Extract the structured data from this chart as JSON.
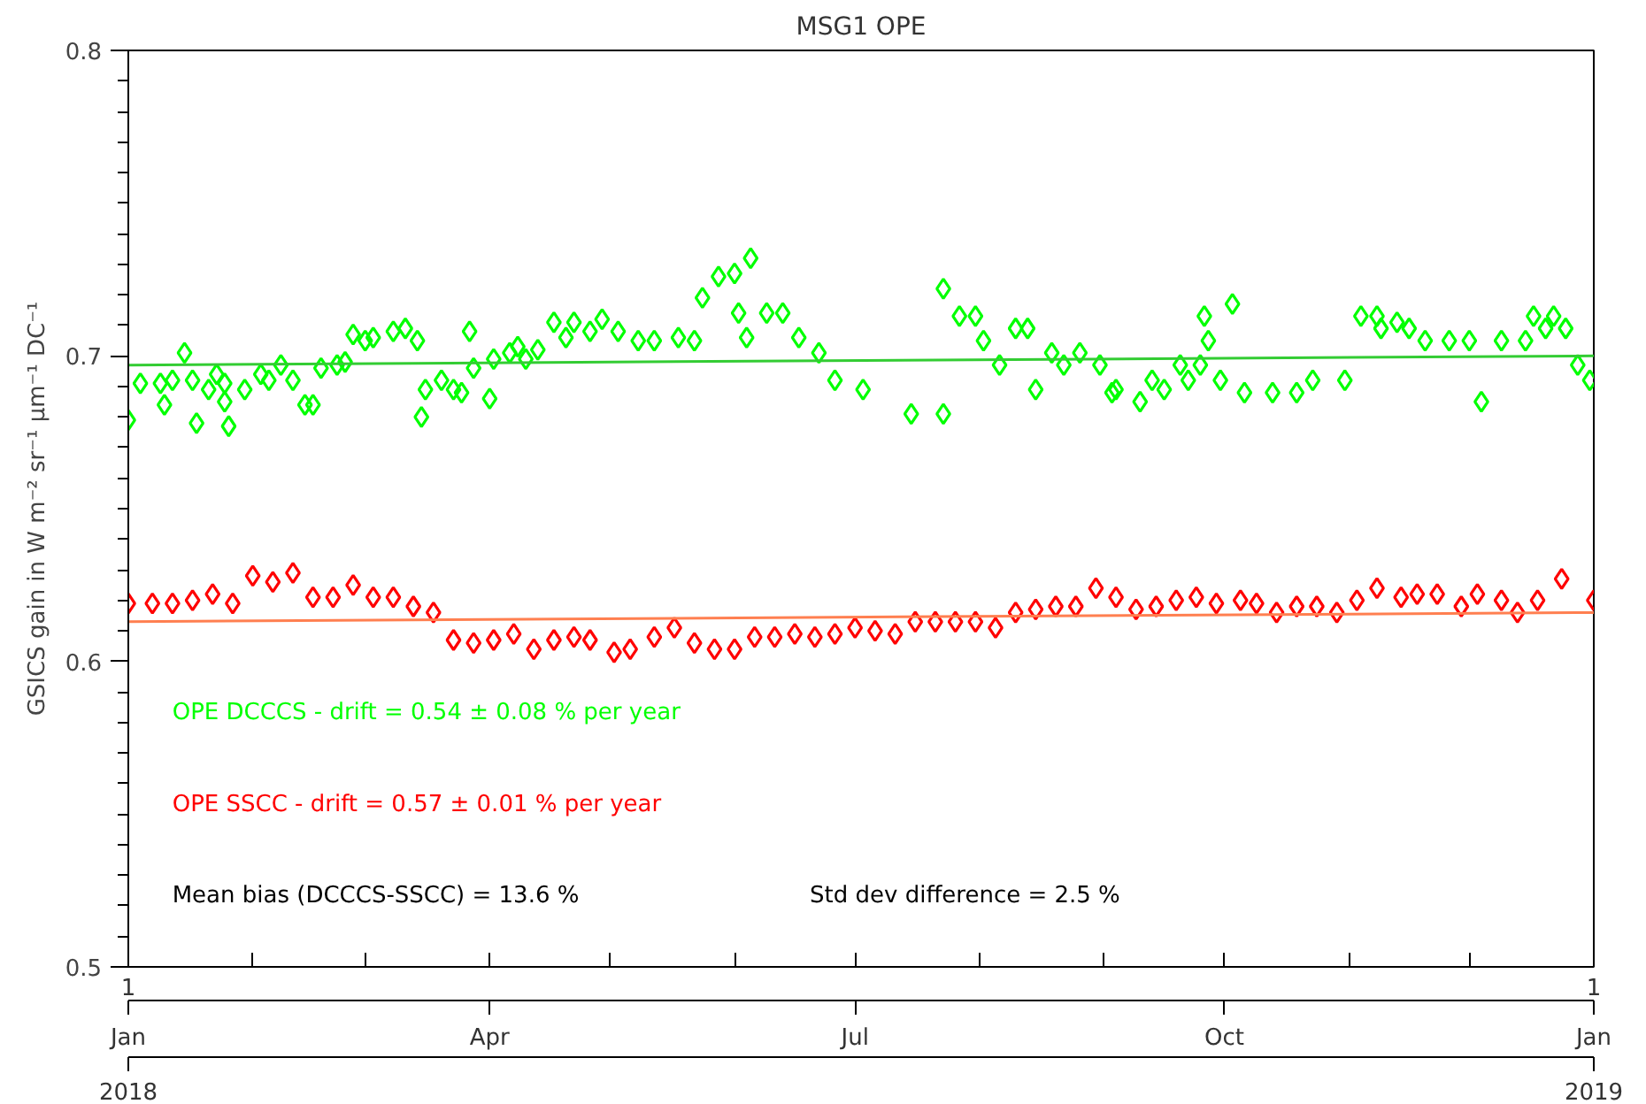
{
  "chart_data": {
    "type": "scatter",
    "title": "MSG1 OPE",
    "ylabel": "GSICS gain in W m⁻² sr⁻¹ μm⁻¹ DC⁻¹",
    "xlim": [
      "2018-01-01",
      "2019-01-01"
    ],
    "ylim": [
      0.5,
      0.8
    ],
    "yticks": [
      0.5,
      0.6,
      0.7,
      0.8
    ],
    "xticks": [
      {
        "value": "2018-01-01",
        "label": "Jan"
      },
      {
        "value": "2018-02-01",
        "label": null
      },
      {
        "value": "2018-03-01",
        "label": null
      },
      {
        "value": "2018-04-01",
        "label": "Apr"
      },
      {
        "value": "2018-05-01",
        "label": null
      },
      {
        "value": "2018-06-01",
        "label": null
      },
      {
        "value": "2018-07-01",
        "label": "Jul"
      },
      {
        "value": "2018-08-01",
        "label": null
      },
      {
        "value": "2018-09-01",
        "label": null
      },
      {
        "value": "2018-10-01",
        "label": "Oct"
      },
      {
        "value": "2018-11-01",
        "label": null
      },
      {
        "value": "2018-12-01",
        "label": null
      },
      {
        "value": "2019-01-01",
        "label": "Jan"
      }
    ],
    "grid": false,
    "annotations": [
      "OPE DCCCS  - drift =    0.54 ±    0.08 % per year",
      "OPE SSCC   - drift =    0.57 ±    0.01 % per year",
      "Mean bias (DCCCS-SSCC) =     13.6 %",
      "Std dev difference = 2.5 %",
      "1",
      "1",
      "2018",
      "2019"
    ],
    "series": [
      {
        "color": "#00ff00",
        "marker": "diamond",
        "x": [
          "2018-01-01",
          "2018-01-04",
          "2018-01-09",
          "2018-01-10",
          "2018-01-12",
          "2018-01-15",
          "2018-01-17",
          "2018-01-18",
          "2018-01-21",
          "2018-01-23",
          "2018-01-25",
          "2018-01-26",
          "2018-01-25",
          "2018-01-30",
          "2018-02-03",
          "2018-02-05",
          "2018-02-08",
          "2018-02-11",
          "2018-02-14",
          "2018-02-16",
          "2018-02-18",
          "2018-02-22",
          "2018-02-24",
          "2018-02-26",
          "2018-03-01",
          "2018-03-03",
          "2018-03-08",
          "2018-03-11",
          "2018-03-14",
          "2018-03-15",
          "2018-03-16",
          "2018-03-20",
          "2018-03-23",
          "2018-03-27",
          "2018-03-25",
          "2018-03-28",
          "2018-04-01",
          "2018-04-02",
          "2018-04-06",
          "2018-04-08",
          "2018-04-10",
          "2018-04-13",
          "2018-04-17",
          "2018-04-20",
          "2018-04-22",
          "2018-04-26",
          "2018-04-29",
          "2018-05-03",
          "2018-05-08",
          "2018-05-12",
          "2018-05-18",
          "2018-05-22",
          "2018-05-24",
          "2018-05-28",
          "2018-06-01",
          "2018-06-02",
          "2018-06-04",
          "2018-06-05",
          "2018-06-09",
          "2018-06-13",
          "2018-06-17",
          "2018-06-22",
          "2018-06-26",
          "2018-07-03",
          "2018-07-15",
          "2018-07-23",
          "2018-07-23",
          "2018-07-27",
          "2018-07-31",
          "2018-08-02",
          "2018-08-06",
          "2018-08-10",
          "2018-08-13",
          "2018-08-15",
          "2018-08-19",
          "2018-08-22",
          "2018-08-26",
          "2018-08-31",
          "2018-09-03",
          "2018-09-04",
          "2018-09-10",
          "2018-09-13",
          "2018-09-16",
          "2018-09-20",
          "2018-09-22",
          "2018-09-25",
          "2018-09-26",
          "2018-09-27",
          "2018-09-30",
          "2018-10-03",
          "2018-10-06",
          "2018-10-13",
          "2018-10-19",
          "2018-10-23",
          "2018-10-31",
          "2018-11-04",
          "2018-11-08",
          "2018-11-09",
          "2018-11-13",
          "2018-11-16",
          "2018-11-20",
          "2018-11-26",
          "2018-12-01",
          "2018-12-04",
          "2018-12-09",
          "2018-12-15",
          "2018-12-17",
          "2018-12-20",
          "2018-12-22",
          "2018-12-25",
          "2018-12-28",
          "2018-12-31"
        ],
        "values": [
          0.679,
          0.691,
          0.691,
          0.684,
          0.692,
          0.701,
          0.692,
          0.678,
          0.689,
          0.694,
          0.691,
          0.677,
          0.685,
          0.689,
          0.694,
          0.692,
          0.697,
          0.692,
          0.684,
          0.684,
          0.696,
          0.697,
          0.698,
          0.707,
          0.705,
          0.706,
          0.708,
          0.709,
          0.705,
          0.68,
          0.689,
          0.692,
          0.689,
          0.708,
          0.688,
          0.696,
          0.686,
          0.699,
          0.701,
          0.703,
          0.699,
          0.702,
          0.711,
          0.706,
          0.711,
          0.708,
          0.712,
          0.708,
          0.705,
          0.705,
          0.706,
          0.705,
          0.719,
          0.726,
          0.727,
          0.714,
          0.706,
          0.732,
          0.714,
          0.714,
          0.706,
          0.701,
          0.692,
          0.689,
          0.681,
          0.681,
          0.722,
          0.713,
          0.713,
          0.705,
          0.697,
          0.709,
          0.709,
          0.689,
          0.701,
          0.697,
          0.701,
          0.697,
          0.688,
          0.689,
          0.685,
          0.692,
          0.689,
          0.697,
          0.692,
          0.697,
          0.713,
          0.705,
          0.692,
          0.717,
          0.688,
          0.688,
          0.688,
          0.692,
          0.692,
          0.713,
          0.713,
          0.709,
          0.711,
          0.709,
          0.705,
          0.705,
          0.705,
          0.685,
          0.705,
          0.705,
          0.713,
          0.709,
          0.713,
          0.709,
          0.697,
          0.692
        ]
      },
      {
        "color": "#ff0000",
        "marker": "diamond",
        "x": [
          "2018-01-01",
          "2018-01-07",
          "2018-01-12",
          "2018-01-17",
          "2018-01-22",
          "2018-01-27",
          "2018-02-01",
          "2018-02-06",
          "2018-02-11",
          "2018-02-16",
          "2018-02-21",
          "2018-02-26",
          "2018-03-03",
          "2018-03-08",
          "2018-03-13",
          "2018-03-18",
          "2018-03-23",
          "2018-03-28",
          "2018-04-02",
          "2018-04-07",
          "2018-04-12",
          "2018-04-17",
          "2018-04-22",
          "2018-04-26",
          "2018-05-02",
          "2018-05-06",
          "2018-05-12",
          "2018-05-17",
          "2018-05-22",
          "2018-05-27",
          "2018-06-01",
          "2018-06-06",
          "2018-06-11",
          "2018-06-16",
          "2018-06-21",
          "2018-06-26",
          "2018-07-01",
          "2018-07-06",
          "2018-07-11",
          "2018-07-16",
          "2018-07-21",
          "2018-07-26",
          "2018-07-31",
          "2018-08-05",
          "2018-08-10",
          "2018-08-15",
          "2018-08-20",
          "2018-08-25",
          "2018-08-30",
          "2018-09-04",
          "2018-09-09",
          "2018-09-14",
          "2018-09-19",
          "2018-09-24",
          "2018-09-29",
          "2018-10-05",
          "2018-10-09",
          "2018-10-14",
          "2018-10-19",
          "2018-10-24",
          "2018-10-29",
          "2018-11-03",
          "2018-11-08",
          "2018-11-14",
          "2018-11-18",
          "2018-11-23",
          "2018-11-29",
          "2018-12-03",
          "2018-12-09",
          "2018-12-13",
          "2018-12-18",
          "2018-12-24",
          "2019-01-01"
        ],
        "values": [
          0.619,
          0.619,
          0.619,
          0.62,
          0.622,
          0.619,
          0.628,
          0.626,
          0.629,
          0.621,
          0.621,
          0.625,
          0.621,
          0.621,
          0.618,
          0.616,
          0.607,
          0.606,
          0.607,
          0.609,
          0.604,
          0.607,
          0.608,
          0.607,
          0.603,
          0.604,
          0.608,
          0.611,
          0.606,
          0.604,
          0.604,
          0.608,
          0.608,
          0.609,
          0.608,
          0.609,
          0.611,
          0.61,
          0.609,
          0.613,
          0.613,
          0.613,
          0.613,
          0.611,
          0.616,
          0.617,
          0.618,
          0.618,
          0.624,
          0.621,
          0.617,
          0.618,
          0.62,
          0.621,
          0.619,
          0.62,
          0.619,
          0.616,
          0.618,
          0.618,
          0.616,
          0.62,
          0.624,
          0.621,
          0.622,
          0.622,
          0.618,
          0.622,
          0.62,
          0.616,
          0.62,
          0.627,
          0.62
        ]
      },
      {
        "type": "line",
        "color": "#33cc33",
        "x": [
          "2018-01-01",
          "2019-01-01"
        ],
        "values": [
          0.697,
          0.7
        ]
      },
      {
        "type": "line",
        "color": "#ff7f50",
        "x": [
          "2018-01-01",
          "2019-01-01"
        ],
        "values": [
          0.613,
          0.616
        ]
      }
    ]
  }
}
